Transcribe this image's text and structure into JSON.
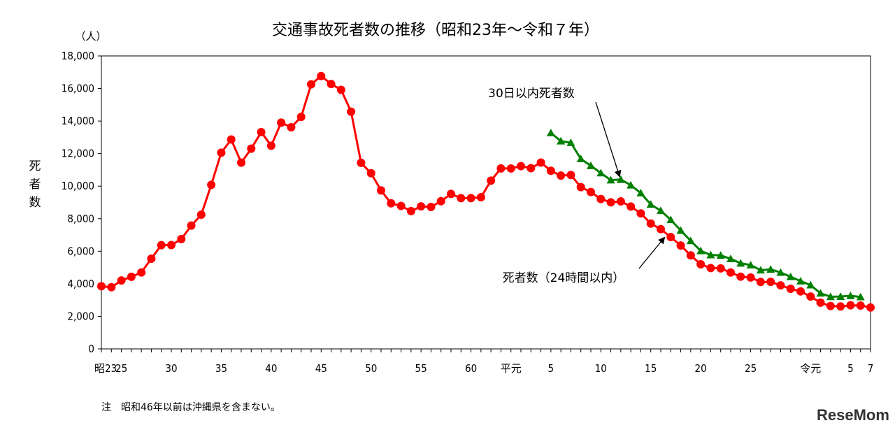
{
  "chart_data": {
    "type": "line",
    "title": "交通事故死者数の推移（昭和23年～令和７年）",
    "unit_label": "（人）",
    "ylabel": "死者数",
    "ylim": [
      0,
      18000
    ],
    "y_ticks": [
      "0",
      "2,000",
      "4,000",
      "6,000",
      "8,000",
      "10,000",
      "12,000",
      "14,000",
      "16,000",
      "18,000"
    ],
    "x_ticks": [
      {
        "label": "昭23",
        "year": 1948
      },
      {
        "label": "25",
        "year": 1950
      },
      {
        "label": "30",
        "year": 1955
      },
      {
        "label": "35",
        "year": 1960
      },
      {
        "label": "40",
        "year": 1965
      },
      {
        "label": "45",
        "year": 1970
      },
      {
        "label": "50",
        "year": 1975
      },
      {
        "label": "55",
        "year": 1980
      },
      {
        "label": "60",
        "year": 1985
      },
      {
        "label": "平元",
        "year": 1989
      },
      {
        "label": "5",
        "year": 1993
      },
      {
        "label": "10",
        "year": 1998
      },
      {
        "label": "15",
        "year": 2003
      },
      {
        "label": "20",
        "year": 2008
      },
      {
        "label": "25",
        "year": 2013
      },
      {
        "label": "令元",
        "year": 2019
      },
      {
        "label": "5",
        "year": 2023
      },
      {
        "label": "7",
        "year": 2025
      }
    ],
    "series": [
      {
        "name": "死者数（24時間以内）",
        "color": "#ff0000",
        "marker": "circle",
        "x": [
          1948,
          1949,
          1950,
          1951,
          1952,
          1953,
          1954,
          1955,
          1956,
          1957,
          1958,
          1959,
          1960,
          1961,
          1962,
          1963,
          1964,
          1965,
          1966,
          1967,
          1968,
          1969,
          1970,
          1971,
          1972,
          1973,
          1974,
          1975,
          1976,
          1977,
          1978,
          1979,
          1980,
          1981,
          1982,
          1983,
          1984,
          1985,
          1986,
          1987,
          1988,
          1989,
          1990,
          1991,
          1992,
          1993,
          1994,
          1995,
          1996,
          1997,
          1998,
          1999,
          2000,
          2001,
          2002,
          2003,
          2004,
          2005,
          2006,
          2007,
          2008,
          2009,
          2010,
          2011,
          2012,
          2013,
          2014,
          2015,
          2016,
          2017,
          2018,
          2019,
          2020,
          2021,
          2022,
          2023,
          2024,
          2025
        ],
        "values": [
          3848,
          3790,
          4202,
          4429,
          4696,
          5544,
          6374,
          6379,
          6751,
          7575,
          8248,
          10079,
          12055,
          12865,
          11445,
          12301,
          13318,
          12484,
          13904,
          13618,
          14256,
          16257,
          16765,
          16278,
          15918,
          14574,
          11432,
          10792,
          9734,
          8945,
          8783,
          8466,
          8760,
          8719,
          9073,
          9520,
          9262,
          9261,
          9317,
          10337,
          11088,
          11086,
          11227,
          11105,
          11451,
          10942,
          10649,
          10684,
          9942,
          9640,
          9211,
          9006,
          9066,
          8747,
          8326,
          7702,
          7358,
          6871,
          6352,
          5744,
          5197,
          4968,
          4948,
          4691,
          4438,
          4388,
          4113,
          4117,
          3904,
          3694,
          3532,
          3215,
          2839,
          2636,
          2610,
          2678,
          2663,
          2547
        ]
      },
      {
        "name": "30日以内死者数",
        "color": "#008000",
        "marker": "triangle",
        "x": [
          1993,
          1994,
          1995,
          1996,
          1997,
          1998,
          1999,
          2000,
          2001,
          2002,
          2003,
          2004,
          2005,
          2006,
          2007,
          2008,
          2009,
          2010,
          2011,
          2012,
          2013,
          2014,
          2015,
          2016,
          2017,
          2018,
          2019,
          2020,
          2021,
          2022,
          2023,
          2024
        ],
        "values": [
          13269,
          12768,
          12670,
          11674,
          11254,
          10805,
          10372,
          10403,
          10060,
          9575,
          8877,
          8492,
          7931,
          7272,
          6639,
          6023,
          5772,
          5745,
          5535,
          5261,
          5152,
          4838,
          4885,
          4698,
          4431,
          4166,
          3920,
          3416,
          3205,
          3216,
          3263,
          3190
        ]
      }
    ],
    "annotations": [
      "30日以内死者数",
      "死者数（24時間以内）"
    ],
    "note": "注　昭和46年以前は沖縄県を含まない。",
    "watermark": "ReseMom"
  }
}
